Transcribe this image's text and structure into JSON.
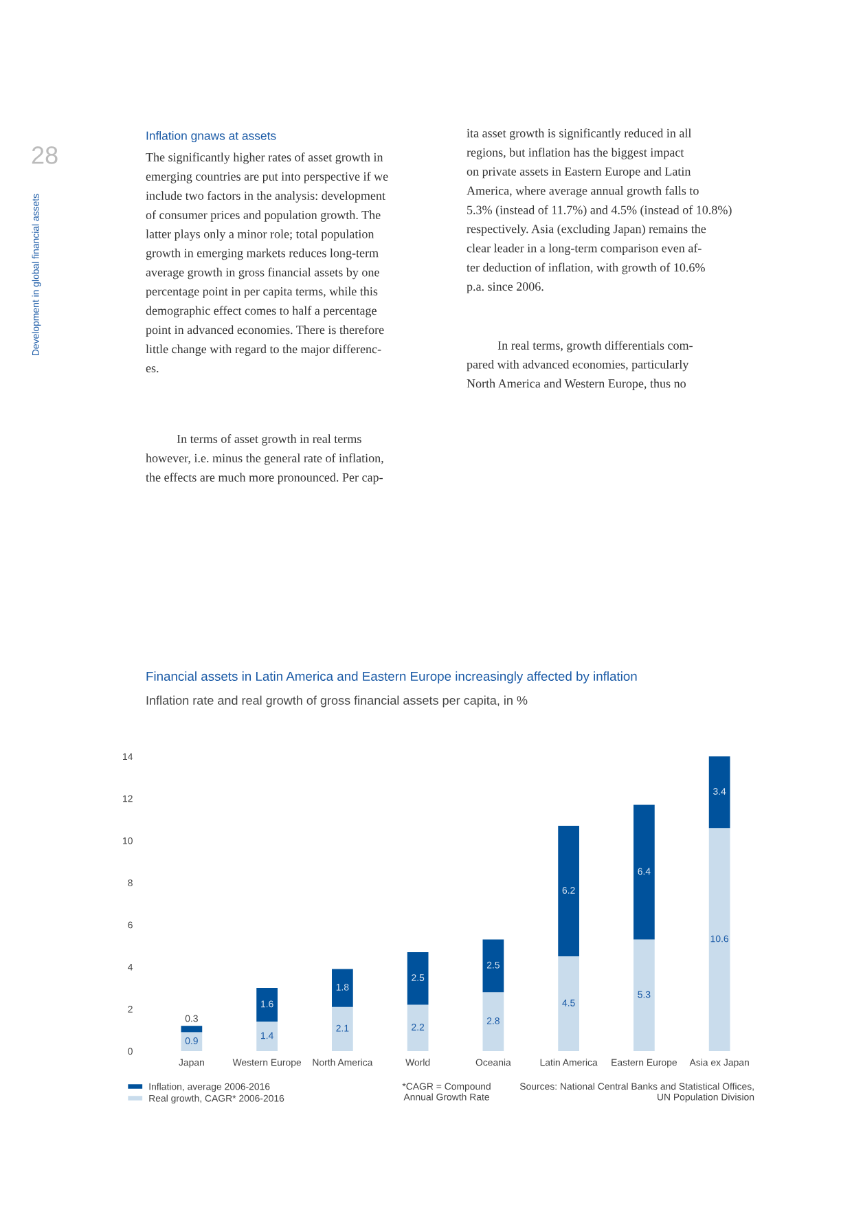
{
  "chart_data": {
    "type": "bar",
    "title": "Financial assets in Latin America and Eastern Europe increasingly affected by inflation",
    "subtitle": "Inflation rate and real growth of gross financial assets per capita, in %",
    "categories": [
      "Japan",
      "Western Europe",
      "North America",
      "World",
      "Oceania",
      "Latin America",
      "Eastern Europe",
      "Asia ex Japan"
    ],
    "stacked": true,
    "series": [
      {
        "name": "Real growth, CAGR* 2006-2016",
        "color": "#c9dcec",
        "values": [
          0.9,
          1.4,
          2.1,
          2.2,
          2.8,
          4.5,
          5.3,
          10.6
        ]
      },
      {
        "name": "Inflation, average 2006-2016",
        "color": "#00529c",
        "values": [
          0.3,
          1.6,
          1.8,
          2.5,
          2.5,
          6.2,
          6.4,
          3.4
        ]
      }
    ],
    "ylim": [
      0,
      14
    ],
    "yticks": [
      0,
      2,
      4,
      6,
      8,
      10,
      12,
      14
    ],
    "data_labels": true,
    "legend": "bottom left",
    "grid": false,
    "annotations": [
      "28",
      "Development in global financial assets",
      "Inflation gnaws at assets",
      "The significantly higher rates of asset growth in\nemerging countries are put into perspective if we\ninclude two factors in the analysis: development\nof consumer prices and population growth. The\nlatter plays only a minor role; total population\ngrowth in emerging markets reduces long-term\naverage growth in gross financial assets by one\npercentage point in per capita terms, while this\ndemographic effect comes to half a percentage\npoint in advanced economies. There is therefore\nlittle change with regard to the major differenc-\nes.",
      "          In terms of asset growth in real terms\nhowever, i.e. minus the general rate of inflation,\nthe effects are much more pronounced. Per cap-",
      "ita asset growth is significantly reduced in all\nregions, but inflation has the biggest impact\non private assets in Eastern Europe and Latin\nAmerica, where average annual growth falls to\n5.3% (instead of 11.7%) and 4.5% (instead of 10.8%)\nrespectively. Asia (excluding Japan) remains the\nclear leader in a long-term comparison even af-\nter deduction of inflation, with growth of 10.6%\np.a. since 2006.",
      "          In real terms, growth differentials com-\npared with advanced economies, particularly\nNorth America and Western Europe, thus no",
      "*CAGR = Compound\nAnnual Growth Rate",
      "Sources: National Central Banks and Statistical Offices,\nUN Population Division"
    ]
  }
}
